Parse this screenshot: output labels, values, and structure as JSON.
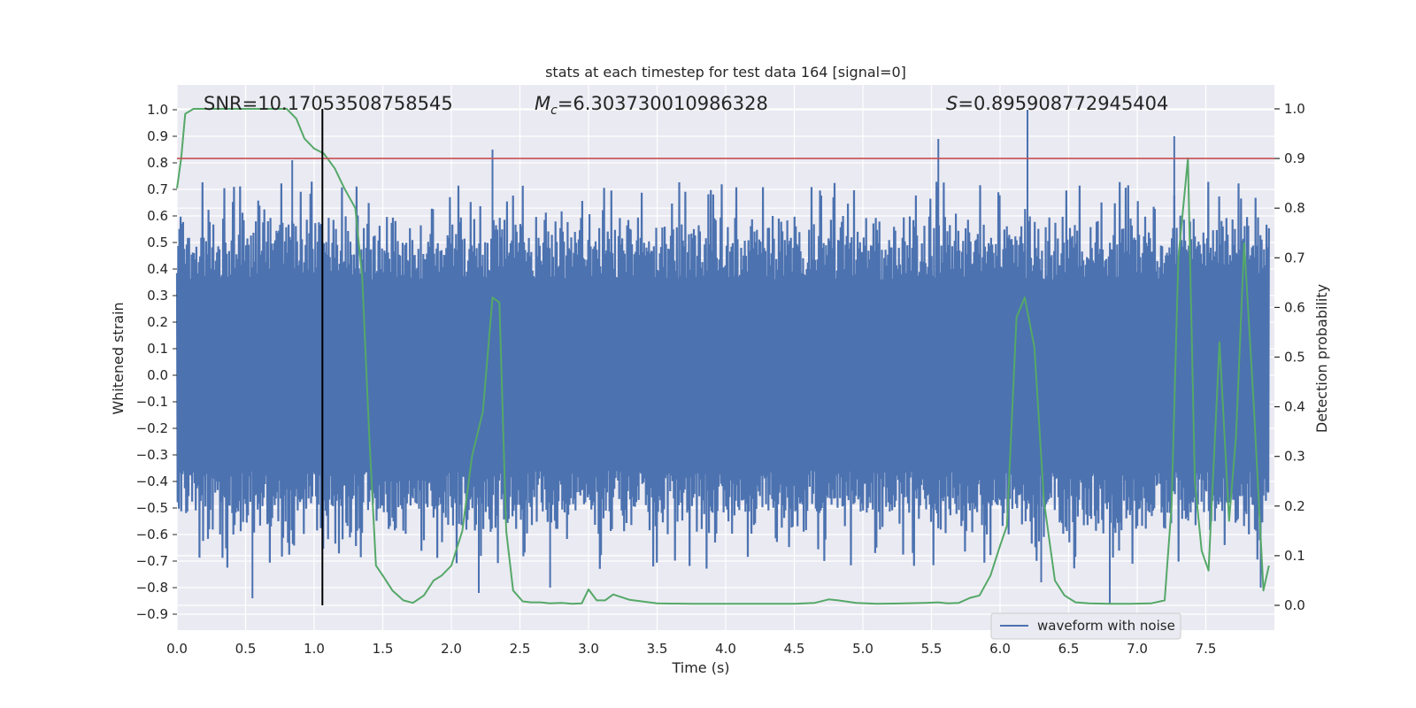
{
  "chart_data": {
    "type": "line",
    "title": "stats at each timestep for test data 164 [signal=0]",
    "xlabel": "Time (s)",
    "ylabel": "Whitened strain",
    "y2label": "Detection probability",
    "xlim": [
      0.0,
      8.0
    ],
    "ylim": [
      -0.95,
      1.09
    ],
    "y2lim": [
      -0.05,
      1.04
    ],
    "xticks": [
      "0.0",
      "0.5",
      "1.0",
      "1.5",
      "2.0",
      "2.5",
      "3.0",
      "3.5",
      "4.0",
      "4.5",
      "5.0",
      "5.5",
      "6.0",
      "6.5",
      "7.0",
      "7.5"
    ],
    "yticks": [
      "1.0",
      "0.9",
      "0.8",
      "0.7",
      "0.6",
      "0.5",
      "0.4",
      "0.3",
      "0.2",
      "0.1",
      "0.0",
      "-0.1",
      "-0.2",
      "-0.3",
      "-0.4",
      "-0.5",
      "-0.6",
      "-0.7",
      "-0.8",
      "-0.9"
    ],
    "y2ticks": [
      "1.0",
      "0.9",
      "0.8",
      "0.7",
      "0.6",
      "0.5",
      "0.4",
      "0.3",
      "0.2",
      "0.1",
      "0.0"
    ],
    "annotations": {
      "snr": "SNR=10.17053508758545",
      "mc_symbol": "M",
      "mc_sub": "c",
      "mc_value": "=6.303730010986328",
      "s_symbol": "S",
      "s_value": "=0.895908772945404"
    },
    "threshold": 0.9,
    "marker_time": 1.06,
    "legend": [
      "waveform with noise"
    ],
    "colors": {
      "waveform": "#4c72b0",
      "probability": "#55a868",
      "threshold": "#c44e52",
      "marker": "#000000",
      "background": "#eaeaf2",
      "grid": "#ffffff"
    },
    "series": [
      {
        "name": "waveform with noise",
        "axis": "left",
        "envelope": "random noise, amplitude about 0.5 to 0.6",
        "spikes": [
          {
            "x": 0.84,
            "y": 0.81
          },
          {
            "x": 0.55,
            "y": -0.84
          },
          {
            "x": 2.3,
            "y": 0.85
          },
          {
            "x": 2.2,
            "y": -0.82
          },
          {
            "x": 2.72,
            "y": -0.8
          },
          {
            "x": 5.55,
            "y": 0.89
          },
          {
            "x": 6.2,
            "y": 1.0
          },
          {
            "x": 6.3,
            "y": -0.78
          },
          {
            "x": 6.8,
            "y": -0.86
          },
          {
            "x": 7.27,
            "y": 0.9
          },
          {
            "x": 7.9,
            "y": -0.8
          }
        ]
      },
      {
        "name": "",
        "axis": "right",
        "x": [
          0.0,
          0.03,
          0.06,
          0.12,
          0.2,
          0.3,
          0.4,
          0.5,
          0.6,
          0.7,
          0.8,
          0.87,
          0.93,
          1.0,
          1.07,
          1.15,
          1.22,
          1.3,
          1.35,
          1.4,
          1.45,
          1.5,
          1.57,
          1.65,
          1.72,
          1.8,
          1.87,
          1.93,
          2.0,
          2.08,
          2.15,
          2.23,
          2.3,
          2.35,
          2.4,
          2.45,
          2.52,
          2.58,
          2.65,
          2.72,
          2.8,
          2.88,
          2.95,
          3.0,
          3.06,
          3.12,
          3.18,
          3.3,
          3.5,
          3.75,
          4.0,
          4.25,
          4.5,
          4.65,
          4.75,
          4.82,
          4.95,
          5.1,
          5.3,
          5.45,
          5.55,
          5.62,
          5.7,
          5.78,
          5.85,
          5.93,
          6.0,
          6.05,
          6.12,
          6.18,
          6.25,
          6.32,
          6.4,
          6.47,
          6.55,
          6.65,
          6.8,
          6.95,
          7.1,
          7.2,
          7.25,
          7.3,
          7.37,
          7.42,
          7.47,
          7.52,
          7.6,
          7.67,
          7.72,
          7.78,
          7.85,
          7.92,
          7.96
        ],
        "values": [
          0.84,
          0.9,
          0.99,
          1.0,
          1.0,
          1.0,
          1.0,
          1.0,
          1.0,
          1.0,
          1.0,
          0.98,
          0.94,
          0.92,
          0.91,
          0.88,
          0.84,
          0.8,
          0.66,
          0.35,
          0.08,
          0.06,
          0.03,
          0.01,
          0.005,
          0.02,
          0.05,
          0.06,
          0.08,
          0.15,
          0.3,
          0.39,
          0.62,
          0.61,
          0.15,
          0.03,
          0.008,
          0.006,
          0.006,
          0.004,
          0.005,
          0.003,
          0.004,
          0.032,
          0.01,
          0.01,
          0.022,
          0.011,
          0.004,
          0.003,
          0.003,
          0.003,
          0.003,
          0.005,
          0.012,
          0.01,
          0.005,
          0.003,
          0.004,
          0.005,
          0.006,
          0.004,
          0.005,
          0.015,
          0.02,
          0.06,
          0.12,
          0.16,
          0.58,
          0.62,
          0.52,
          0.21,
          0.05,
          0.02,
          0.006,
          0.004,
          0.003,
          0.003,
          0.004,
          0.01,
          0.2,
          0.7,
          0.9,
          0.25,
          0.11,
          0.07,
          0.53,
          0.17,
          0.34,
          0.73,
          0.4,
          0.03,
          0.08
        ]
      }
    ]
  }
}
